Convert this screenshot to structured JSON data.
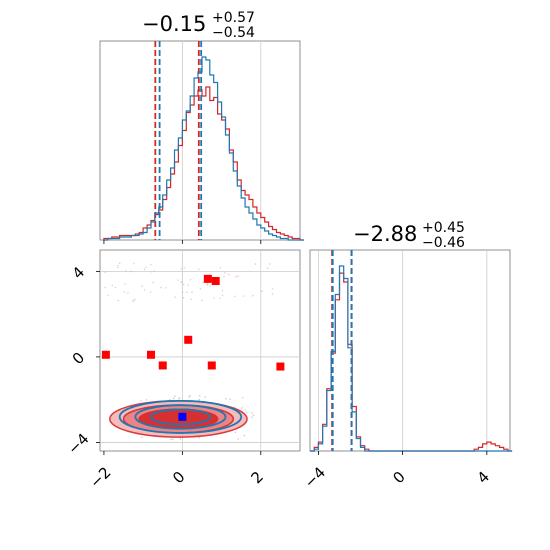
{
  "chart_data": [
    {
      "type": "histogram",
      "panel": "marginal-param-1",
      "title": {
        "value": "−0.15",
        "upper": "+0.57",
        "lower": "−0.54"
      },
      "xlim": [
        -2.1,
        3.0
      ],
      "bins": {
        "start": -2.0,
        "width": 0.1
      },
      "series": [
        {
          "color": "#d62728",
          "counts": [
            1,
            1,
            2,
            2,
            3,
            3,
            3,
            3,
            4,
            5,
            8,
            10,
            13,
            17,
            20,
            27,
            35,
            44,
            52,
            63,
            73,
            85,
            90,
            96,
            100,
            96,
            102,
            93,
            95,
            84,
            80,
            74,
            60,
            52,
            40,
            33,
            30,
            27,
            22,
            18,
            15,
            12,
            9,
            7,
            5,
            4,
            3,
            2,
            1,
            1,
            0
          ],
          "quantiles": [
            -0.69,
            0.42
          ]
        },
        {
          "color": "#1f77b4",
          "counts": [
            0,
            1,
            1,
            1,
            2,
            2,
            2,
            3,
            3,
            4,
            5,
            8,
            12,
            18,
            22,
            30,
            40,
            48,
            60,
            68,
            80,
            86,
            96,
            108,
            112,
            122,
            120,
            110,
            105,
            92,
            82,
            70,
            58,
            46,
            36,
            28,
            22,
            18,
            14,
            10,
            8,
            6,
            4,
            3,
            2,
            1,
            1,
            0,
            0,
            0,
            0
          ],
          "quantiles": [
            -0.58,
            0.48
          ]
        }
      ]
    },
    {
      "type": "histogram",
      "panel": "marginal-param-2",
      "title": {
        "value": "−2.88",
        "upper": "+0.45",
        "lower": "−0.46"
      },
      "xlim": [
        -4.4,
        5.1
      ],
      "bins": {
        "start": -4.4,
        "width": 0.2
      },
      "series": [
        {
          "color": "#d62728",
          "counts": [
            0,
            2,
            5,
            15,
            35,
            55,
            85,
            100,
            95,
            60,
            25,
            8,
            3,
            1,
            0,
            0,
            0,
            0,
            0,
            0,
            0,
            0,
            0,
            0,
            0,
            0,
            0,
            0,
            0,
            0,
            0,
            0,
            0,
            0,
            0,
            0,
            0,
            0,
            0,
            1,
            2,
            4,
            5,
            4,
            3,
            2,
            1,
            0
          ],
          "quantiles": [
            -3.35,
            -2.43
          ]
        },
        {
          "color": "#1f77b4",
          "counts": [
            0,
            1,
            4,
            14,
            34,
            56,
            88,
            104,
            97,
            58,
            22,
            7,
            2,
            0,
            0,
            0,
            0,
            0,
            0,
            0,
            0,
            0,
            0,
            0,
            0,
            0,
            0,
            0,
            0,
            0,
            0,
            0,
            0,
            0,
            0,
            0,
            0,
            0,
            0,
            0,
            0,
            0,
            0,
            0,
            0,
            0,
            0,
            0
          ],
          "quantiles": [
            -3.32,
            -2.42
          ]
        }
      ]
    },
    {
      "type": "scatter",
      "panel": "joint-param-1-vs-param-2",
      "xlim": [
        -2.1,
        3.0
      ],
      "ylim": [
        -4.4,
        5.0
      ],
      "red_square_points": [
        [
          -1.95,
          0.1
        ],
        [
          -0.8,
          0.1
        ],
        [
          -0.5,
          -0.4
        ],
        [
          0.15,
          0.8
        ],
        [
          0.75,
          -0.4
        ],
        [
          2.5,
          -0.45
        ],
        [
          0.85,
          3.55
        ],
        [
          0.65,
          3.65
        ]
      ],
      "blue_square_point": [
        0.0,
        -2.8
      ],
      "contours": {
        "center": [
          -0.1,
          -2.9
        ],
        "red_radii": [
          [
            1.75,
            0.85
          ],
          [
            1.4,
            0.65
          ],
          [
            1.0,
            0.45
          ]
        ],
        "blue_radii": [
          [
            1.55,
            0.75
          ],
          [
            1.15,
            0.55
          ],
          [
            0.75,
            0.35
          ]
        ]
      }
    }
  ],
  "axes": {
    "corner_x1_ticks": [
      "−2",
      "0",
      "2"
    ],
    "corner_x1_tick_values": [
      -2,
      0,
      2
    ],
    "corner_y_ticks": [
      "−4",
      "0",
      "4"
    ],
    "corner_y_tick_values": [
      -4,
      0,
      4
    ],
    "diag2_x_ticks": [
      "−4",
      "0",
      "4"
    ],
    "diag2_x_tick_values": [
      -4,
      0,
      4
    ]
  },
  "colors": {
    "red": "#d62728",
    "blue": "#1f77b4",
    "grid": "#cccccc",
    "spine": "#777777"
  }
}
